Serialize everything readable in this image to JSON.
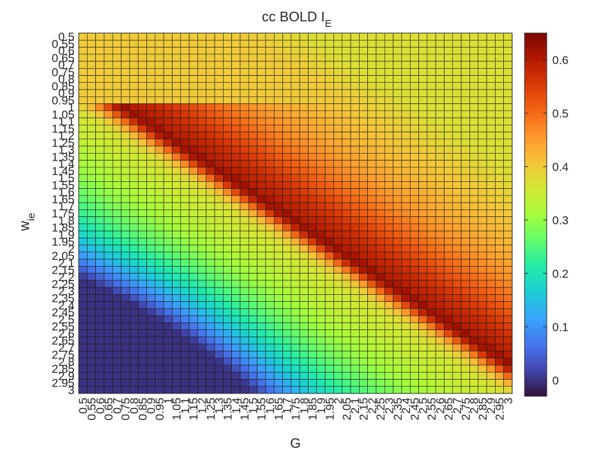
{
  "chart_data": {
    "type": "heatmap",
    "title": "cc BOLD I",
    "title_subscript": "E",
    "xlabel": "G",
    "ylabel": "w",
    "ylabel_subscript": "ie",
    "x_ticks": [
      "0.5",
      "0.55",
      "0.6",
      "0.65",
      "0.7",
      "0.75",
      "0.8",
      "0.85",
      "0.9",
      "0.95",
      "1",
      "1.05",
      "1.1",
      "1.15",
      "1.2",
      "1.25",
      "1.3",
      "1.35",
      "1.4",
      "1.45",
      "1.5",
      "1.55",
      "1.6",
      "1.65",
      "1.7",
      "1.75",
      "1.8",
      "1.85",
      "1.9",
      "1.95",
      "2",
      "2.05",
      "2.1",
      "2.15",
      "2.2",
      "2.25",
      "2.3",
      "2.35",
      "2.4",
      "2.45",
      "2.5",
      "2.55",
      "2.6",
      "2.65",
      "2.7",
      "2.75",
      "2.8",
      "2.85",
      "2.9",
      "2.95",
      "3"
    ],
    "y_ticks": [
      "0.5",
      "0.55",
      "0.6",
      "0.65",
      "0.7",
      "0.75",
      "0.8",
      "0.85",
      "0.9",
      "0.95",
      "1",
      "1.05",
      "1.1",
      "1.15",
      "1.2",
      "1.25",
      "1.3",
      "1.35",
      "1.4",
      "1.45",
      "1.5",
      "1.55",
      "1.6",
      "1.65",
      "1.7",
      "1.75",
      "1.8",
      "1.85",
      "1.9",
      "1.95",
      "2",
      "2.05",
      "2.1",
      "2.15",
      "2.2",
      "2.25",
      "2.3",
      "2.35",
      "2.4",
      "2.45",
      "2.5",
      "2.55",
      "2.6",
      "2.65",
      "2.7",
      "2.75",
      "2.8",
      "2.85",
      "2.9",
      "2.95",
      "3"
    ],
    "colorbar": {
      "ticks": [
        "0",
        "0.1",
        "0.2",
        "0.3",
        "0.4",
        "0.5",
        "0.6"
      ],
      "range": [
        -0.03,
        0.65
      ],
      "colormap": "turbo"
    },
    "value_estimate": {
      "description": "Approximate cell values: baseline about 0.37, a diagonal ridge rising to about 0.62 where w_ie is roughly 0.8*G + 0.4, and values falling to about 0.0 toward large w_ie and small G.",
      "ridge_slope": 0.8,
      "ridge_intercept": 0.4,
      "ridge_peak": 0.62,
      "baseline": 0.37,
      "low_corner_min": 0.0
    }
  }
}
